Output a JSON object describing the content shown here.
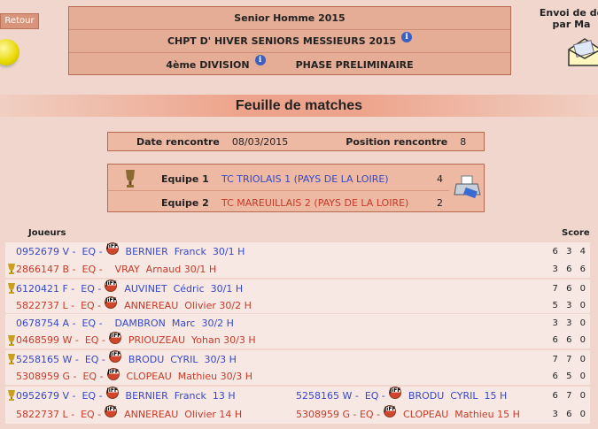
{
  "retour_label": "Retour",
  "envoi_label": "Envoi de do par Ma",
  "header": {
    "row1": "Senior Homme  2015",
    "row2": "CHPT D' HIVER SENIORS MESSIEURS 2015",
    "row3_division": "4ème DIVISION",
    "row3_phase": "PHASE PRELIMINAIRE",
    "info_glyph": "i"
  },
  "banner_title": "Feuille de matches",
  "rencontre": {
    "date_label": "Date rencontre",
    "date": "08/03/2015",
    "position_label": "Position rencontre",
    "position": "8"
  },
  "teams": [
    {
      "label": "Equipe 1",
      "name": "TC TRIOLAIS 1 (PAYS DE LA LOIRE)",
      "score": "4"
    },
    {
      "label": "Equipe 2",
      "name": "TC MAREUILLAIS 2 (PAYS DE LA LOIRE)",
      "score": "2"
    }
  ],
  "columns": {
    "players": "Joueurs",
    "score": "Score"
  },
  "jiff_text": "JiFF",
  "colors": {
    "team1": "#3548c8",
    "team2": "#c83a28",
    "background": "#f0d6cd",
    "box": "#e5ad95"
  },
  "matches": [
    {
      "lines": [
        {
          "winner": false,
          "players": [
            {
              "lic": "0952679 V -  EQ -",
              "jiff": true,
              "name": "BERNIER  Franck  30/1 H"
            }
          ],
          "score": "6 3 4"
        },
        {
          "winner": true,
          "players": [
            {
              "lic": "2866147 B -  EQ -",
              "jiff": false,
              "name": "VRAY  Arnaud 30/1 H"
            }
          ],
          "score": "3 6 6"
        }
      ]
    },
    {
      "lines": [
        {
          "winner": true,
          "players": [
            {
              "lic": "6120421 F -  EQ -",
              "jiff": true,
              "name": "AUVINET  Cédric  30/1 H"
            }
          ],
          "score": "7 6 0"
        },
        {
          "winner": false,
          "players": [
            {
              "lic": "5822737 L -  EQ -",
              "jiff": true,
              "name": "ANNEREAU  Olivier 30/2 H"
            }
          ],
          "score": "5 3 0"
        }
      ]
    },
    {
      "lines": [
        {
          "winner": false,
          "players": [
            {
              "lic": "0678754 A -  EQ -",
              "jiff": false,
              "name": "DAMBRON  Marc  30/2 H"
            }
          ],
          "score": "3 3 0"
        },
        {
          "winner": true,
          "players": [
            {
              "lic": "0468599 W -  EQ -",
              "jiff": true,
              "name": "PRIOUZEAU  Yohan 30/3 H"
            }
          ],
          "score": "6 6 0"
        }
      ]
    },
    {
      "lines": [
        {
          "winner": true,
          "players": [
            {
              "lic": "5258165 W -  EQ -",
              "jiff": true,
              "name": "BRODU  CYRIL  30/3 H"
            }
          ],
          "score": "7 7 0"
        },
        {
          "winner": false,
          "players": [
            {
              "lic": "5308959 G -  EQ -",
              "jiff": true,
              "name": "CLOPEAU  Mathieu 30/3 H"
            }
          ],
          "score": "6 5 0"
        }
      ]
    },
    {
      "lines": [
        {
          "winner": true,
          "players": [
            {
              "lic": "0952679 V -  EQ -",
              "jiff": true,
              "name": "BERNIER  Franck  13 H"
            },
            {
              "lic": "5258165 W -  EQ -",
              "jiff": true,
              "name": "BRODU  CYRIL  15 H"
            }
          ],
          "score": "6 7 0"
        },
        {
          "winner": false,
          "players": [
            {
              "lic": "5822737 L -  EQ -",
              "jiff": true,
              "name": "ANNEREAU  Olivier 14 H"
            },
            {
              "lic": "5308959 G - EQ -",
              "jiff": true,
              "name": "CLOPEAU  Mathieu 15 H"
            }
          ],
          "score": "3 6 0"
        }
      ]
    }
  ]
}
